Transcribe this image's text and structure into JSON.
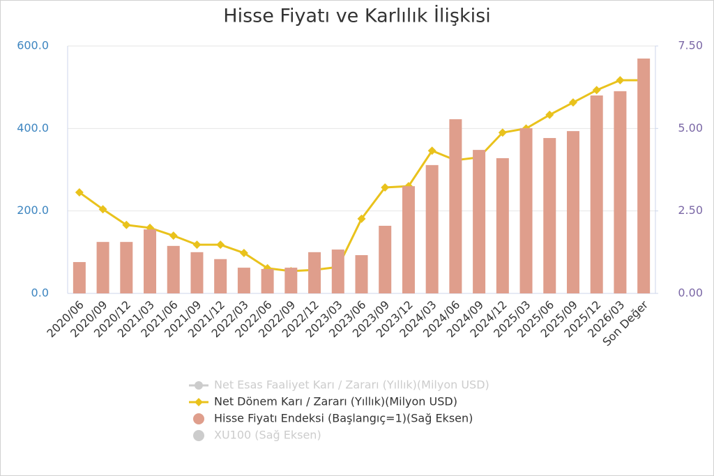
{
  "chart_data": {
    "type": "bar-line",
    "title": "Hisse Fiyatı ve Karlılık İlişkisi",
    "categories": [
      "2020/06",
      "2020/09",
      "2020/12",
      "2021/03",
      "2021/06",
      "2021/09",
      "2021/12",
      "2022/03",
      "2022/06",
      "2022/09",
      "2022/12",
      "2023/03",
      "2023/06",
      "2023/09",
      "2023/12",
      "2024/03",
      "2024/06",
      "2024/09",
      "2024/12",
      "2025/03",
      "2025/06",
      "2025/09",
      "2025/12",
      "2026/03",
      "Son Değer"
    ],
    "series": [
      {
        "name": "Net Esas Faaliyet Karı / Zararı (Yıllık)(Milyon USD)",
        "type": "line",
        "color": "#cccccc",
        "hidden": true
      },
      {
        "name": "Net Dönem Karı / Zararı (Yıllık)(Milyon USD)",
        "type": "line",
        "color": "#e9c21c",
        "axis": "y",
        "values": [
          245,
          204,
          166,
          159,
          140,
          118,
          118,
          98,
          61,
          54,
          57,
          64,
          181,
          257,
          260,
          346,
          323,
          330,
          390,
          400,
          433,
          463,
          493,
          517,
          517
        ]
      },
      {
        "name": "Hisse Fiyatı Endeksi (Başlangıç=1)(Sağ Eksen)",
        "type": "bar",
        "color": "#df9e8c",
        "axis": "y2",
        "values": [
          0.95,
          1.56,
          1.56,
          1.94,
          1.44,
          1.25,
          1.04,
          0.78,
          0.74,
          0.78,
          1.25,
          1.33,
          1.16,
          2.05,
          3.25,
          3.89,
          5.28,
          4.35,
          4.1,
          5.01,
          4.71,
          4.92,
          6.0,
          6.13,
          7.12
        ]
      },
      {
        "name": "XU100 (Sağ Eksen)",
        "type": "bar",
        "color": "#cccccc",
        "hidden": true
      }
    ],
    "ylim": [
      0,
      600
    ],
    "yticks": [
      {
        "value": 0,
        "label": "0.0"
      },
      {
        "value": 200,
        "label": "200.0"
      },
      {
        "value": 400,
        "label": "400.0"
      },
      {
        "value": 600,
        "label": "600.0"
      }
    ],
    "y2lim": [
      0,
      7.5
    ],
    "y2ticks": [
      {
        "value": 0,
        "label": "0.00"
      },
      {
        "value": 2.5,
        "label": "2.50"
      },
      {
        "value": 5,
        "label": "5.00"
      },
      {
        "value": 7.5,
        "label": "7.50"
      }
    ],
    "grid": true
  }
}
